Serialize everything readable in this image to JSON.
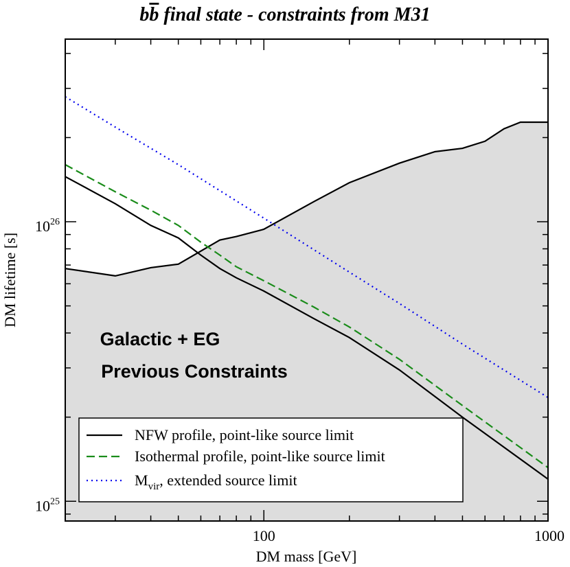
{
  "chart_data": {
    "type": "line",
    "title": {
      "part1": "b",
      "part2": "b",
      "part3": " final state - constraints from M31"
    },
    "xlabel": "DM mass [GeV]",
    "ylabel": "DM lifetime [s]",
    "x_scale": "log",
    "y_scale": "log",
    "xlim": [
      20,
      1000
    ],
    "ylim": [
      8.5e+24,
      4.5e+26
    ],
    "x_ticks": [
      {
        "value": 100,
        "label": "100"
      },
      {
        "value": 1000,
        "label": "1000"
      }
    ],
    "y_ticks": [
      {
        "value": 1e+25,
        "base": "10",
        "exp": "25"
      },
      {
        "value": 1e+26,
        "base": "10",
        "exp": "26"
      }
    ],
    "annotation": {
      "line1": "Galactic + EG",
      "line2": "Previous Constraints"
    },
    "shaded_region": {
      "name": "Galactic + EG previous constraints",
      "color": "#dddddd",
      "x": [
        20,
        30,
        40,
        50,
        70,
        80,
        100,
        150,
        200,
        300,
        400,
        500,
        600,
        700,
        800,
        1000
      ],
      "y": [
        6.8e+25,
        6.4e+25,
        6.85e+25,
        7.05e+25,
        8.6e+25,
        8.85e+25,
        9.4e+25,
        1.18e+26,
        1.38e+26,
        1.62e+26,
        1.78e+26,
        1.83e+26,
        1.94e+26,
        2.15e+26,
        2.27e+26,
        2.27e+26
      ]
    },
    "series": [
      {
        "name": "NFW profile, point-like source limit",
        "label_text": "NFW profile, point-like source limit",
        "style": "solid",
        "color": "#000000",
        "x": [
          20,
          30,
          40,
          50,
          60,
          70,
          80,
          100,
          150,
          200,
          300,
          500,
          1000
        ],
        "y": [
          1.45e+26,
          1.16e+26,
          9.7e+25,
          8.75e+25,
          7.6e+25,
          6.8e+25,
          6.3e+25,
          5.65e+25,
          4.5e+25,
          3.85e+25,
          2.95e+25,
          2e+25,
          1.2e+25
        ]
      },
      {
        "name": "Isothermal profile, point-like source limit",
        "label_text": "Isothermal profile, point-like source limit",
        "style": "dashed",
        "color": "#1a8c1a",
        "x": [
          20,
          30,
          40,
          50,
          60,
          70,
          80,
          100,
          150,
          200,
          300,
          500,
          1000
        ],
        "y": [
          1.6e+26,
          1.28e+26,
          1.1e+26,
          9.7e+25,
          8.45e+25,
          7.6e+25,
          6.9e+25,
          6.15e+25,
          4.95e+25,
          4.2e+25,
          3.22e+25,
          2.2e+25,
          1.32e+25
        ]
      },
      {
        "name": "Mvir, extended source limit",
        "label_text": {
          "main": "M",
          "sub": "vir",
          "rest": ", extended source limit"
        },
        "style": "dotted",
        "color": "#0000ee",
        "x": [
          20,
          30,
          50,
          100,
          200,
          300,
          500,
          1000
        ],
        "y": [
          2.8e+26,
          2.18e+26,
          1.6e+26,
          1.03e+26,
          6.6e+25,
          5.1e+25,
          3.65e+25,
          2.35e+25
        ]
      }
    ],
    "legend": {
      "placement": "bottom-left"
    }
  }
}
